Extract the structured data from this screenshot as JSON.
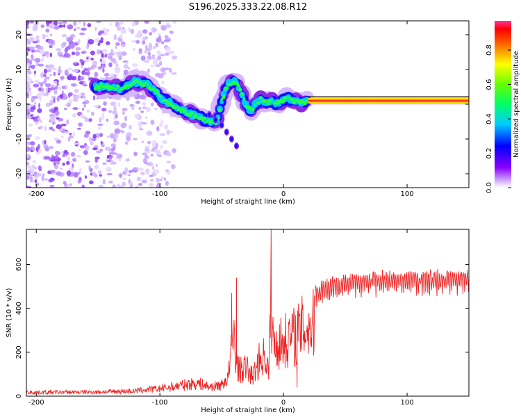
{
  "figure_title": "S196.2025.333.22.08.R12",
  "colors": {
    "snr_line": "#ee2222",
    "ridge": "#ff3030",
    "frame": "#000000"
  },
  "chart_data": [
    {
      "type": "heatmap",
      "name": "spectrogram",
      "xlabel": "Height of straight line (km)",
      "ylabel": "Frequency (Hz)",
      "xlim": [
        -208,
        150
      ],
      "ylim": [
        -24,
        24
      ],
      "xticks": [
        -200,
        -100,
        0,
        100
      ],
      "yticks": [
        -20,
        -10,
        0,
        10,
        20
      ],
      "colorbar": {
        "label": "Normalized spectral amplitude",
        "range": [
          0,
          0.97
        ],
        "ticks": [
          "0.0",
          "0.2",
          "0.4",
          "0.6",
          "0.8"
        ],
        "tick_values": [
          0.0,
          0.2,
          0.4,
          0.6,
          0.8
        ]
      },
      "ridge": {
        "x": [
          -150,
          -140,
          -130,
          -120,
          -112,
          -105,
          -98,
          -90,
          -82,
          -74,
          -66,
          -58,
          -54,
          -50,
          -46,
          -42,
          -38,
          -34,
          -30,
          -26,
          -22,
          -18,
          -14,
          -10,
          -6,
          -2,
          2,
          6,
          10,
          14,
          20,
          40,
          60,
          80,
          100,
          120,
          140,
          150
        ],
        "y": [
          5,
          5,
          4.5,
          6.5,
          6,
          4,
          1.5,
          0,
          -2,
          -3,
          -4,
          -5,
          -5,
          1,
          5,
          6.5,
          6,
          3,
          -0.5,
          -2,
          0.5,
          1.5,
          0.5,
          1,
          0,
          0.5,
          2,
          1,
          1,
          0.5,
          1,
          1,
          1,
          1,
          1,
          1,
          1,
          1
        ]
      },
      "side_branch": {
        "x": [
          -60,
          -55,
          -50,
          -46,
          -42,
          -38
        ],
        "y": [
          -3,
          -4.5,
          -6,
          -8,
          -10,
          -12
        ]
      }
    },
    {
      "type": "line",
      "name": "snr",
      "xlabel": "Height of straight line (km)",
      "ylabel": "SNR (10 * v/v)",
      "xlim": [
        -208,
        150
      ],
      "ylim": [
        0,
        760
      ],
      "xticks": [
        -200,
        -100,
        0,
        100
      ],
      "yticks": [
        0,
        200,
        400,
        600
      ],
      "envelope_x": [
        -208,
        -150,
        -120,
        -100,
        -80,
        -70,
        -60,
        -50,
        -45,
        -42,
        -40,
        -38,
        -35,
        -30,
        -25,
        -20,
        -15,
        -12,
        -10,
        -8,
        -5,
        0,
        5,
        10,
        15,
        20,
        30,
        40,
        60,
        80,
        100,
        120,
        150
      ],
      "envelope_y": [
        20,
        22,
        28,
        40,
        60,
        70,
        50,
        60,
        100,
        300,
        380,
        200,
        160,
        180,
        120,
        220,
        260,
        150,
        600,
        300,
        330,
        340,
        370,
        380,
        420,
        440,
        460,
        490,
        500,
        510,
        510,
        510,
        520
      ],
      "spikes": [
        {
          "x": -42,
          "y": 470
        },
        {
          "x": -38,
          "y": 540
        },
        {
          "x": -10,
          "y": 760
        },
        {
          "x": 11,
          "y": 40
        }
      ]
    }
  ]
}
